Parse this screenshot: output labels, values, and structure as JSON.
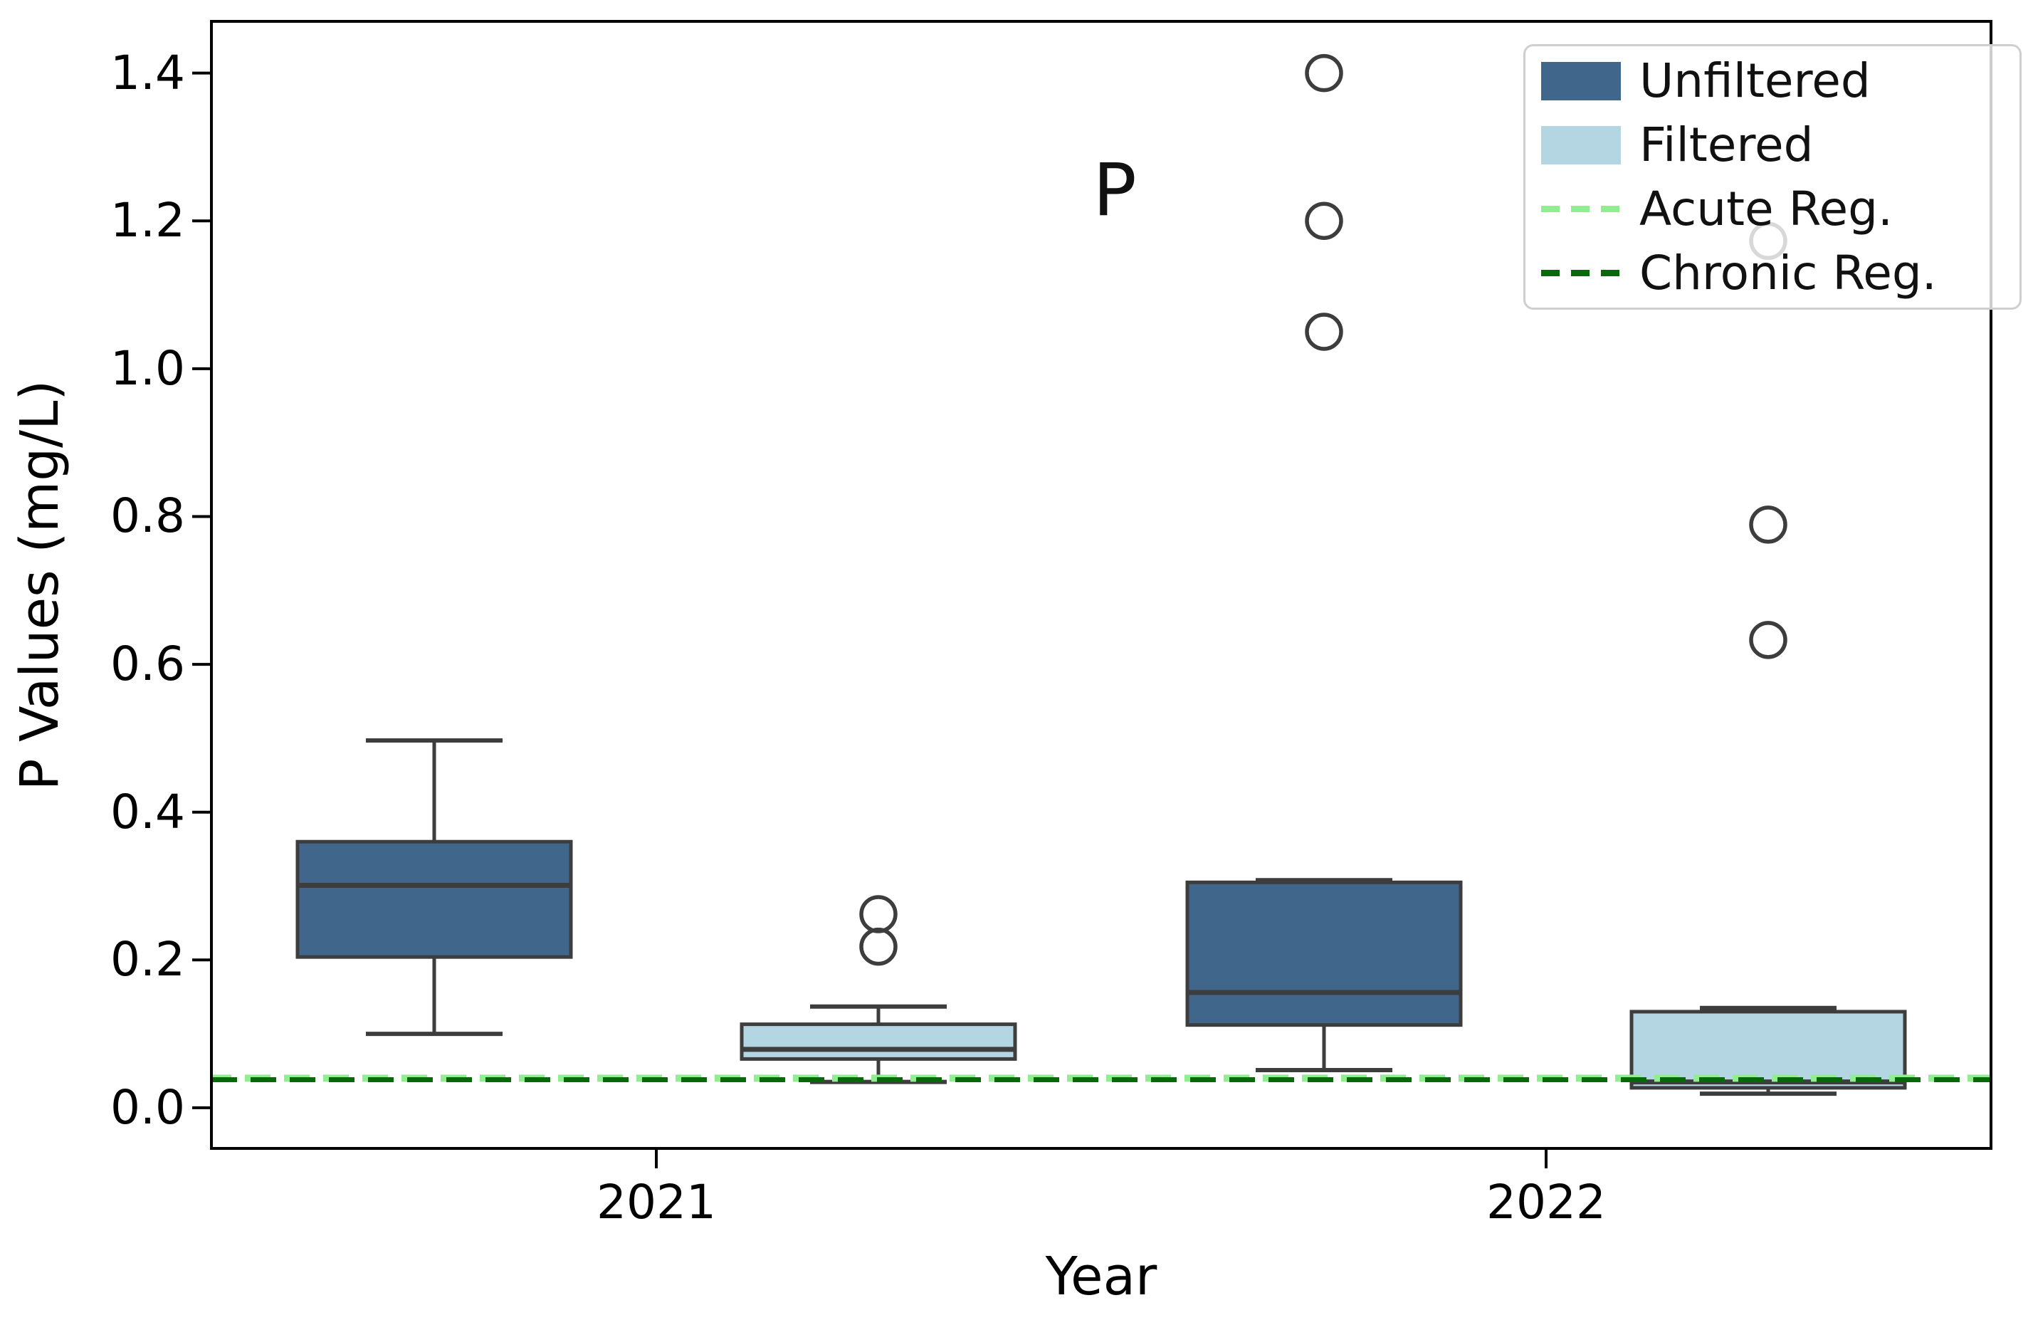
{
  "figure": {
    "background": "#ffffff",
    "frame_color": "#000000",
    "box_edge_color": "#3d3d3d",
    "legend_border_color": "#cfcfcf"
  },
  "chart_data": {
    "type": "boxplot",
    "title": "",
    "xlabel": "Year",
    "ylabel": "P Values (mg/L)",
    "annotation": "P",
    "categories": [
      "2021",
      "2022"
    ],
    "y_tick_labels": [
      "1.4",
      "1.2",
      "1.0",
      "0.8",
      "0.6",
      "0.4",
      "0.2",
      "0.0"
    ],
    "y_tick_values": [
      1.4,
      1.2,
      1.0,
      0.8,
      0.6,
      0.4,
      0.2,
      0.0
    ],
    "ylim": [
      -0.055,
      1.47
    ],
    "grid": false,
    "legend_position": "upper right",
    "series": [
      {
        "name": "Unfiltered",
        "color": "#41668C",
        "boxes": [
          {
            "category": "2021",
            "whislo": 0.1,
            "q1": 0.204,
            "med": 0.301,
            "q3": 0.36,
            "whishi": 0.497,
            "outliers": []
          },
          {
            "category": "2022",
            "whislo": 0.051,
            "q1": 0.112,
            "med": 0.156,
            "q3": 0.305,
            "whishi": 0.308,
            "outliers": [
              1.05,
              1.2,
              1.4
            ]
          }
        ]
      },
      {
        "name": "Filtered",
        "color": "#B4D5E2",
        "boxes": [
          {
            "category": "2021",
            "whislo": 0.035,
            "q1": 0.066,
            "med": 0.079,
            "q3": 0.113,
            "whishi": 0.137,
            "outliers": [
              0.218,
              0.262
            ]
          },
          {
            "category": "2022",
            "whislo": 0.019,
            "q1": 0.027,
            "med": 0.035,
            "q3": 0.13,
            "whishi": 0.135,
            "outliers": [
              0.633,
              0.789,
              1.173
            ]
          }
        ]
      }
    ],
    "reference_lines": [
      {
        "name": "Acute Reg.",
        "value": 0.04,
        "color": "#90EE90",
        "style": "dashed"
      },
      {
        "name": "Chronic Reg.",
        "value": 0.038,
        "color": "#086908",
        "style": "dashed"
      }
    ]
  }
}
